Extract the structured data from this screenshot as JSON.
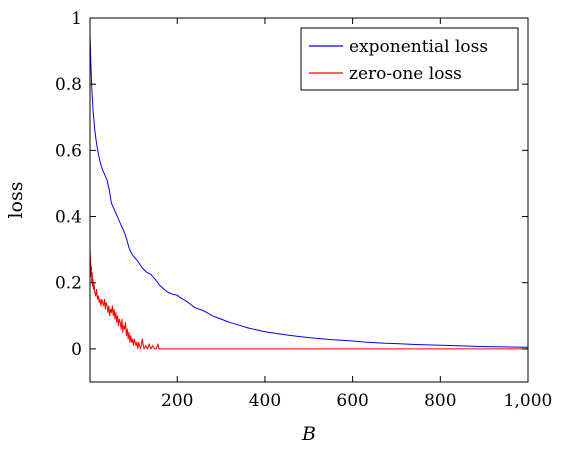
{
  "chart_data": {
    "type": "line",
    "title": "",
    "xlabel": "B",
    "ylabel": "loss",
    "xlim": [
      1,
      1000
    ],
    "ylim": [
      -0.1,
      1
    ],
    "x_ticks": [
      200,
      400,
      600,
      800,
      1000
    ],
    "x_tick_labels": [
      "200",
      "400",
      "600",
      "800",
      "1,000"
    ],
    "y_ticks": [
      0,
      0.2,
      0.4,
      0.6,
      0.8,
      1
    ],
    "y_tick_labels": [
      "0",
      "0.2",
      "0.4",
      "0.6",
      "0.8",
      "1"
    ],
    "grid": false,
    "legend_position": "top-right",
    "series": [
      {
        "name": "exponential loss",
        "color": "#0000ff",
        "x": [
          1,
          3,
          5,
          8,
          12,
          16,
          20,
          25,
          30,
          35,
          40,
          45,
          50,
          55,
          60,
          65,
          70,
          75,
          80,
          85,
          90,
          95,
          100,
          110,
          120,
          130,
          140,
          150,
          160,
          170,
          180,
          190,
          200,
          210,
          220,
          230,
          240,
          250,
          260,
          270,
          280,
          290,
          300,
          320,
          340,
          360,
          380,
          400,
          425,
          450,
          475,
          500,
          525,
          550,
          575,
          600,
          625,
          650,
          675,
          700,
          750,
          800,
          850,
          900,
          950,
          1000
        ],
        "y": [
          0.95,
          0.86,
          0.79,
          0.72,
          0.66,
          0.62,
          0.59,
          0.56,
          0.54,
          0.525,
          0.51,
          0.48,
          0.44,
          0.425,
          0.41,
          0.395,
          0.38,
          0.365,
          0.35,
          0.33,
          0.305,
          0.29,
          0.28,
          0.265,
          0.245,
          0.232,
          0.225,
          0.21,
          0.192,
          0.18,
          0.17,
          0.165,
          0.162,
          0.152,
          0.145,
          0.135,
          0.125,
          0.12,
          0.115,
          0.108,
          0.1,
          0.095,
          0.09,
          0.08,
          0.072,
          0.064,
          0.058,
          0.052,
          0.047,
          0.042,
          0.038,
          0.034,
          0.031,
          0.028,
          0.026,
          0.024,
          0.021,
          0.019,
          0.017,
          0.016,
          0.013,
          0.011,
          0.009,
          0.007,
          0.006,
          0.005
        ]
      },
      {
        "name": "zero-one loss",
        "color": "#ff0000",
        "x": [
          1,
          2,
          3,
          4,
          5,
          6,
          7,
          8,
          9,
          10,
          12,
          14,
          16,
          18,
          20,
          22,
          24,
          26,
          28,
          30,
          32,
          34,
          36,
          38,
          40,
          42,
          44,
          46,
          48,
          50,
          52,
          54,
          56,
          58,
          60,
          62,
          64,
          66,
          68,
          70,
          72,
          74,
          76,
          78,
          80,
          82,
          84,
          86,
          88,
          90,
          92,
          94,
          96,
          98,
          100,
          102,
          104,
          106,
          108,
          110,
          112,
          114,
          116,
          118,
          120,
          124,
          128,
          132,
          136,
          140,
          144,
          148,
          152,
          156,
          158,
          160,
          200,
          300,
          400,
          500,
          600,
          700,
          800,
          900,
          1000
        ],
        "y": [
          0.31,
          0.27,
          0.22,
          0.25,
          0.2,
          0.23,
          0.19,
          0.21,
          0.18,
          0.2,
          0.17,
          0.16,
          0.18,
          0.15,
          0.16,
          0.14,
          0.15,
          0.13,
          0.15,
          0.14,
          0.13,
          0.15,
          0.12,
          0.14,
          0.13,
          0.11,
          0.13,
          0.1,
          0.12,
          0.11,
          0.13,
          0.1,
          0.12,
          0.09,
          0.11,
          0.08,
          0.1,
          0.07,
          0.09,
          0.08,
          0.06,
          0.09,
          0.05,
          0.07,
          0.06,
          0.08,
          0.04,
          0.06,
          0.03,
          0.05,
          0.02,
          0.04,
          0.02,
          0.03,
          0.01,
          0.03,
          0.02,
          0.01,
          0.02,
          0.0,
          0.02,
          0.01,
          0.0,
          0.01,
          0.03,
          0.0,
          0.01,
          0.0,
          0.015,
          0.0,
          0.01,
          0.0,
          0.0,
          0.015,
          0.0,
          0.0,
          0.0,
          0.0,
          0.0,
          0.0,
          0.0,
          0.0,
          0.0,
          0.0,
          0.0
        ]
      }
    ]
  }
}
